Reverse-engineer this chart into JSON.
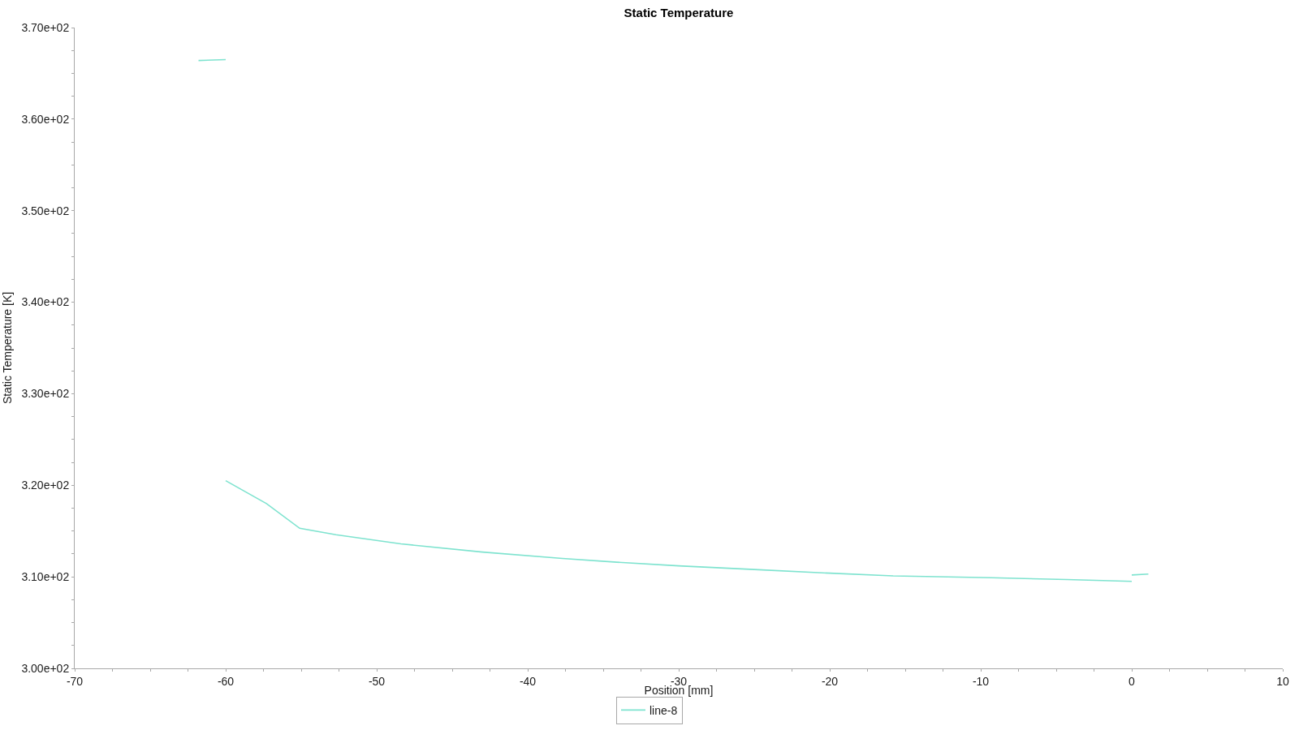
{
  "chart_data": {
    "type": "line",
    "title": "Static Temperature",
    "xlabel": "Position [mm]",
    "ylabel": "Static Temperature [K]",
    "series": [
      {
        "name": "line-8",
        "color": "#7ee3cf",
        "x": [
          -61.8,
          -60
        ],
        "values": [
          366.4,
          366.5
        ]
      },
      {
        "color": "#7ee3cf",
        "x": [
          -60,
          -57.3,
          -55.1,
          -52.7,
          -48.4,
          -43,
          -37.7,
          -34.1,
          -30,
          -25,
          -20,
          -15.8,
          -9.3,
          -4.3,
          0
        ],
        "values": [
          320.5,
          318.0,
          315.3,
          314.6,
          313.6,
          312.7,
          312.0,
          311.6,
          311.2,
          310.8,
          310.4,
          310.1,
          309.9,
          309.7,
          309.5
        ]
      },
      {
        "color": "#7ee3cf",
        "x": [
          0,
          1.1
        ],
        "values": [
          310.2,
          310.3
        ]
      }
    ],
    "xlim": [
      -70,
      10
    ],
    "xticks": [
      -70,
      {
        "value": -67.5,
        "label": null
      },
      {
        "value": -65,
        "label": null
      },
      {
        "value": -62.5,
        "label": null
      },
      -60,
      {
        "value": -57.5,
        "label": null
      },
      {
        "value": -55,
        "label": null
      },
      {
        "value": -52.5,
        "label": null
      },
      -50,
      {
        "value": -47.5,
        "label": null
      },
      {
        "value": -45,
        "label": null
      },
      {
        "value": -42.5,
        "label": null
      },
      -40,
      {
        "value": -37.5,
        "label": null
      },
      {
        "value": -35,
        "label": null
      },
      {
        "value": -32.5,
        "label": null
      },
      -30,
      {
        "value": -27.5,
        "label": null
      },
      {
        "value": -25,
        "label": null
      },
      {
        "value": -22.5,
        "label": null
      },
      -20,
      {
        "value": -17.5,
        "label": null
      },
      {
        "value": -15,
        "label": null
      },
      {
        "value": -12.5,
        "label": null
      },
      -10,
      {
        "value": -7.5,
        "label": null
      },
      {
        "value": -5,
        "label": null
      },
      {
        "value": -2.5,
        "label": null
      },
      0,
      {
        "value": 2.5,
        "label": null
      },
      {
        "value": 5,
        "label": null
      },
      {
        "value": 7.5,
        "label": null
      },
      10
    ],
    "ylim": [
      300,
      370
    ],
    "yticks": [
      {
        "value": 300,
        "label": "3.00e+02"
      },
      {
        "value": 302.5,
        "label": null
      },
      {
        "value": 305,
        "label": null
      },
      {
        "value": 307.5,
        "label": null
      },
      {
        "value": 310,
        "label": "3.10e+02"
      },
      {
        "value": 312.5,
        "label": null
      },
      {
        "value": 315,
        "label": null
      },
      {
        "value": 317.5,
        "label": null
      },
      {
        "value": 320,
        "label": "3.20e+02"
      },
      {
        "value": 322.5,
        "label": null
      },
      {
        "value": 325,
        "label": null
      },
      {
        "value": 327.5,
        "label": null
      },
      {
        "value": 330,
        "label": "3.30e+02"
      },
      {
        "value": 332.5,
        "label": null
      },
      {
        "value": 335,
        "label": null
      },
      {
        "value": 337.5,
        "label": null
      },
      {
        "value": 340,
        "label": "3.40e+02"
      },
      {
        "value": 342.5,
        "label": null
      },
      {
        "value": 345,
        "label": null
      },
      {
        "value": 347.5,
        "label": null
      },
      {
        "value": 350,
        "label": "3.50e+02"
      },
      {
        "value": 352.5,
        "label": null
      },
      {
        "value": 355,
        "label": null
      },
      {
        "value": 357.5,
        "label": null
      },
      {
        "value": 360,
        "label": "3.60e+02"
      },
      {
        "value": 362.5,
        "label": null
      },
      {
        "value": 365,
        "label": null
      },
      {
        "value": 367.5,
        "label": null
      },
      {
        "value": 370,
        "label": "3.70e+02"
      }
    ],
    "grid": false,
    "legend": "bottom",
    "marker": "none",
    "line_style": "solid"
  }
}
